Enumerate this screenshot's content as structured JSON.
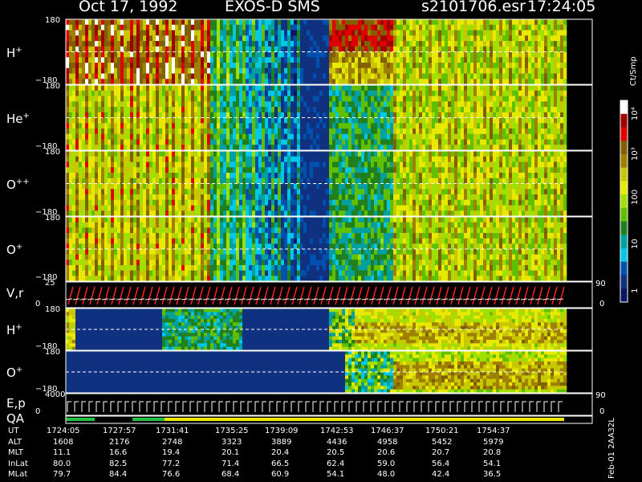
{
  "header": {
    "date": "Oct 17, 1992",
    "instrument": "EXOS-D SMS",
    "filename": "s2101706.esr",
    "time": "17:24:05"
  },
  "colorbar": {
    "unit": "Ct/Smp",
    "ticks": [
      "10⁴",
      "10³",
      "100",
      "10",
      "1"
    ],
    "colors": [
      "#ffffff",
      "#a00000",
      "#e00000",
      "#806000",
      "#a08000",
      "#c8c800",
      "#e8e800",
      "#a0e000",
      "#60c000",
      "#208020",
      "#00a0a0",
      "#00c8e8",
      "#0050b0",
      "#103080",
      "#0a1560"
    ]
  },
  "panels": [
    {
      "id": "h-plus",
      "species": "H",
      "charge": "+",
      "ymax": "180",
      "ymin": "−180",
      "right_tick": ""
    },
    {
      "id": "he-plus",
      "species": "He",
      "charge": "+",
      "ymax": "180",
      "ymin": "−180",
      "right_tick": ""
    },
    {
      "id": "o-pp",
      "species": "O",
      "charge": "++",
      "ymax": "180",
      "ymin": "−180",
      "right_tick": ""
    },
    {
      "id": "o-plus",
      "species": "O",
      "charge": "+",
      "ymax": "180",
      "ymin": "−180",
      "right_tick": ""
    },
    {
      "id": "vr",
      "species": "V,r",
      "charge": "",
      "ymax": "25",
      "ymin": "0",
      "right_tick": "90",
      "right_tick2": "0"
    },
    {
      "id": "h-plus-2",
      "species": "H",
      "charge": "+",
      "ymax": "180",
      "ymin": "−180",
      "right_tick": ""
    },
    {
      "id": "o-plus-2",
      "species": "O",
      "charge": "+",
      "ymax": "180",
      "ymin": "−180",
      "right_tick": ""
    },
    {
      "id": "ep",
      "species": "E,p",
      "charge": "",
      "ymax": "4000",
      "ymin": "0",
      "right_tick": "90",
      "right_tick2": "0"
    },
    {
      "id": "qa",
      "species": "QA",
      "charge": "",
      "ymax": "",
      "ymin": "",
      "right_tick": ""
    }
  ],
  "chart_data": {
    "type": "heatmap",
    "x": [
      "1724:05",
      "1727:57",
      "1731:41",
      "1735:25",
      "1739:09",
      "1742:53",
      "1746:37",
      "1750:21",
      "1754:37"
    ],
    "ylim": [
      -180,
      180
    ]
  },
  "footer": {
    "rows": [
      {
        "label": "UT",
        "values": [
          "1724:05",
          "1727:57",
          "1731:41",
          "1735:25",
          "1739:09",
          "1742:53",
          "1746:37",
          "1750:21",
          "1754:37"
        ]
      },
      {
        "label": "ALT",
        "values": [
          "1608",
          "2176",
          "2748",
          "3323",
          "3889",
          "4436",
          "4958",
          "5452",
          "5979"
        ]
      },
      {
        "label": "MLT",
        "values": [
          "11.1",
          "16.6",
          "19.4",
          "20.1",
          "20.4",
          "20.5",
          "20.6",
          "20.7",
          "20.8"
        ]
      },
      {
        "label": "InLat",
        "values": [
          "80.0",
          "82.5",
          "77.2",
          "71.4",
          "66.5",
          "62.4",
          "59.0",
          "56.4",
          "54.1"
        ]
      },
      {
        "label": "MLat",
        "values": [
          "79.7",
          "84.4",
          "76.6",
          "68.4",
          "60.9",
          "54.1",
          "48.0",
          "42.4",
          "36.5"
        ]
      }
    ],
    "version": "Feb-01 2AA32L"
  }
}
